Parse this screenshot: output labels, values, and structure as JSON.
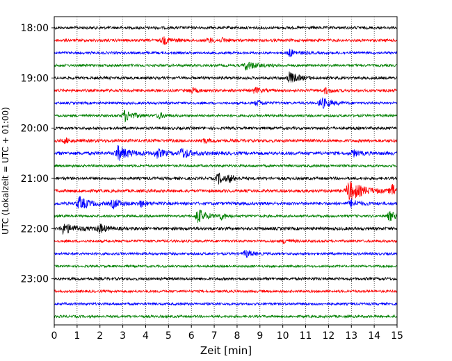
{
  "chart_data": {
    "type": "line",
    "title": "",
    "xlabel": "Zeit  [min]",
    "ylabel": "UTC (Lokalzeit = UTC + 01:00)",
    "xlim": [
      0,
      15
    ],
    "x_ticks": [
      "0",
      "1",
      "2",
      "3",
      "4",
      "5",
      "6",
      "7",
      "8",
      "9",
      "10",
      "11",
      "12",
      "13",
      "14",
      "15"
    ],
    "y_ticks": [
      {
        "row": 0,
        "label": "18:00"
      },
      {
        "row": 4,
        "label": "19:00"
      },
      {
        "row": 8,
        "label": "20:00"
      },
      {
        "row": 12,
        "label": "21:00"
      },
      {
        "row": 16,
        "label": "22:00"
      },
      {
        "row": 20,
        "label": "23:00"
      }
    ],
    "grid": {
      "x": true,
      "y": false
    },
    "colors": [
      "#000000",
      "#ff0000",
      "#0000ff",
      "#008000"
    ],
    "series": [
      {
        "start": "18:00",
        "color": "#000000",
        "amp": 2.0,
        "bursts": []
      },
      {
        "start": "18:15",
        "color": "#ff0000",
        "amp": 2.0,
        "bursts": [
          {
            "t": 4.8,
            "a": 5,
            "d": 0.7
          },
          {
            "t": 6.8,
            "a": 3,
            "d": 0.6
          },
          {
            "t": 7.4,
            "a": 2.5,
            "d": 0.5
          }
        ]
      },
      {
        "start": "18:30",
        "color": "#0000ff",
        "amp": 1.8,
        "bursts": [
          {
            "t": 10.3,
            "a": 5,
            "d": 0.7
          }
        ]
      },
      {
        "start": "18:45",
        "color": "#008000",
        "amp": 1.8,
        "bursts": [
          {
            "t": 8.4,
            "a": 6,
            "d": 1.0
          }
        ]
      },
      {
        "start": "19:00",
        "color": "#000000",
        "amp": 2.0,
        "bursts": [
          {
            "t": 10.3,
            "a": 8,
            "d": 0.8
          }
        ]
      },
      {
        "start": "19:15",
        "color": "#ff0000",
        "amp": 2.0,
        "bursts": [
          {
            "t": 6.0,
            "a": 3.5,
            "d": 0.6
          },
          {
            "t": 8.8,
            "a": 4,
            "d": 0.5
          },
          {
            "t": 11.9,
            "a": 4,
            "d": 0.5
          }
        ]
      },
      {
        "start": "19:30",
        "color": "#0000ff",
        "amp": 1.8,
        "bursts": [
          {
            "t": 8.9,
            "a": 4,
            "d": 0.5
          },
          {
            "t": 11.7,
            "a": 8,
            "d": 0.8
          }
        ]
      },
      {
        "start": "19:45",
        "color": "#008000",
        "amp": 1.8,
        "bursts": [
          {
            "t": 3.1,
            "a": 8,
            "d": 0.8
          },
          {
            "t": 4.6,
            "a": 4,
            "d": 0.5
          }
        ]
      },
      {
        "start": "20:00",
        "color": "#000000",
        "amp": 2.0,
        "bursts": []
      },
      {
        "start": "20:15",
        "color": "#ff0000",
        "amp": 2.2,
        "bursts": [
          {
            "t": 0.5,
            "a": 3,
            "d": 0.5
          },
          {
            "t": 6.5,
            "a": 3,
            "d": 0.6
          }
        ]
      },
      {
        "start": "20:30",
        "color": "#0000ff",
        "amp": 2.4,
        "bursts": [
          {
            "t": 2.8,
            "a": 10,
            "d": 1.0
          },
          {
            "t": 4.5,
            "a": 6,
            "d": 0.7
          },
          {
            "t": 5.6,
            "a": 7,
            "d": 0.8
          },
          {
            "t": 13.1,
            "a": 4,
            "d": 0.6
          }
        ]
      },
      {
        "start": "20:45",
        "color": "#008000",
        "amp": 1.8,
        "bursts": []
      },
      {
        "start": "21:00",
        "color": "#000000",
        "amp": 2.0,
        "bursts": [
          {
            "t": 7.2,
            "a": 7,
            "d": 0.6
          },
          {
            "t": 7.7,
            "a": 4,
            "d": 0.4
          }
        ]
      },
      {
        "start": "21:15",
        "color": "#ff0000",
        "amp": 2.2,
        "bursts": [
          {
            "t": 12.9,
            "a": 14,
            "d": 1.3
          },
          {
            "t": 14.8,
            "a": 10,
            "d": 0.5
          }
        ]
      },
      {
        "start": "21:30",
        "color": "#0000ff",
        "amp": 2.2,
        "bursts": [
          {
            "t": 1.1,
            "a": 9,
            "d": 0.9
          },
          {
            "t": 2.6,
            "a": 6,
            "d": 0.7
          },
          {
            "t": 3.8,
            "a": 4,
            "d": 0.5
          },
          {
            "t": 13.0,
            "a": 5,
            "d": 0.7
          }
        ]
      },
      {
        "start": "21:45",
        "color": "#008000",
        "amp": 1.8,
        "bursts": [
          {
            "t": 6.3,
            "a": 10,
            "d": 0.8
          },
          {
            "t": 7.3,
            "a": 4,
            "d": 0.5
          },
          {
            "t": 14.7,
            "a": 7,
            "d": 0.5
          }
        ]
      },
      {
        "start": "22:00",
        "color": "#000000",
        "amp": 2.2,
        "bursts": [
          {
            "t": 0.4,
            "a": 7,
            "d": 1.2
          },
          {
            "t": 2.0,
            "a": 6,
            "d": 0.6
          }
        ]
      },
      {
        "start": "22:15",
        "color": "#ff0000",
        "amp": 1.8,
        "bursts": [
          {
            "t": 10.1,
            "a": 3,
            "d": 0.6
          }
        ]
      },
      {
        "start": "22:30",
        "color": "#0000ff",
        "amp": 1.8,
        "bursts": [
          {
            "t": 8.4,
            "a": 5,
            "d": 0.6
          }
        ]
      },
      {
        "start": "22:45",
        "color": "#008000",
        "amp": 1.6,
        "bursts": []
      },
      {
        "start": "23:00",
        "color": "#000000",
        "amp": 2.0,
        "bursts": []
      },
      {
        "start": "23:15",
        "color": "#ff0000",
        "amp": 1.8,
        "bursts": []
      },
      {
        "start": "23:30",
        "color": "#0000ff",
        "amp": 1.8,
        "bursts": []
      },
      {
        "start": "23:45",
        "color": "#008000",
        "amp": 1.8,
        "bursts": []
      }
    ]
  }
}
